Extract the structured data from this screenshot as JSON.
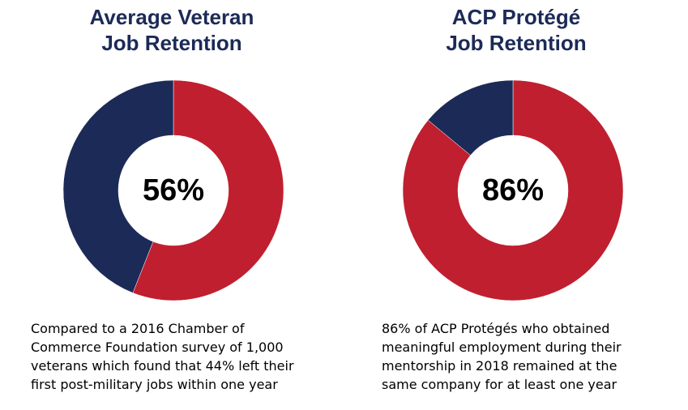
{
  "chart_data": [
    {
      "type": "pie",
      "variant": "donut",
      "title_lines": [
        "Average Veteran",
        "Job Retention"
      ],
      "center_label": "56%",
      "slices": [
        {
          "value": 56,
          "color": "#c01f2f"
        },
        {
          "value": 44,
          "color": "#1c2a57"
        }
      ],
      "caption_lines": [
        "Compared to a 2016 Chamber of",
        "Commerce Foundation survey of 1,000",
        "veterans which found that 44% left their",
        "first post-military jobs within one year"
      ]
    },
    {
      "type": "pie",
      "variant": "donut",
      "title_lines": [
        "ACP Protégé",
        "Job Retention"
      ],
      "center_label": "86%",
      "slices": [
        {
          "value": 86,
          "color": "#c01f2f"
        },
        {
          "value": 14,
          "color": "#1c2a57"
        }
      ],
      "caption_lines": [
        "86% of ACP Protégés who obtained",
        "meaningful employment during their",
        "mentorship in 2018 remained at the",
        "same company for at least one year"
      ]
    }
  ]
}
